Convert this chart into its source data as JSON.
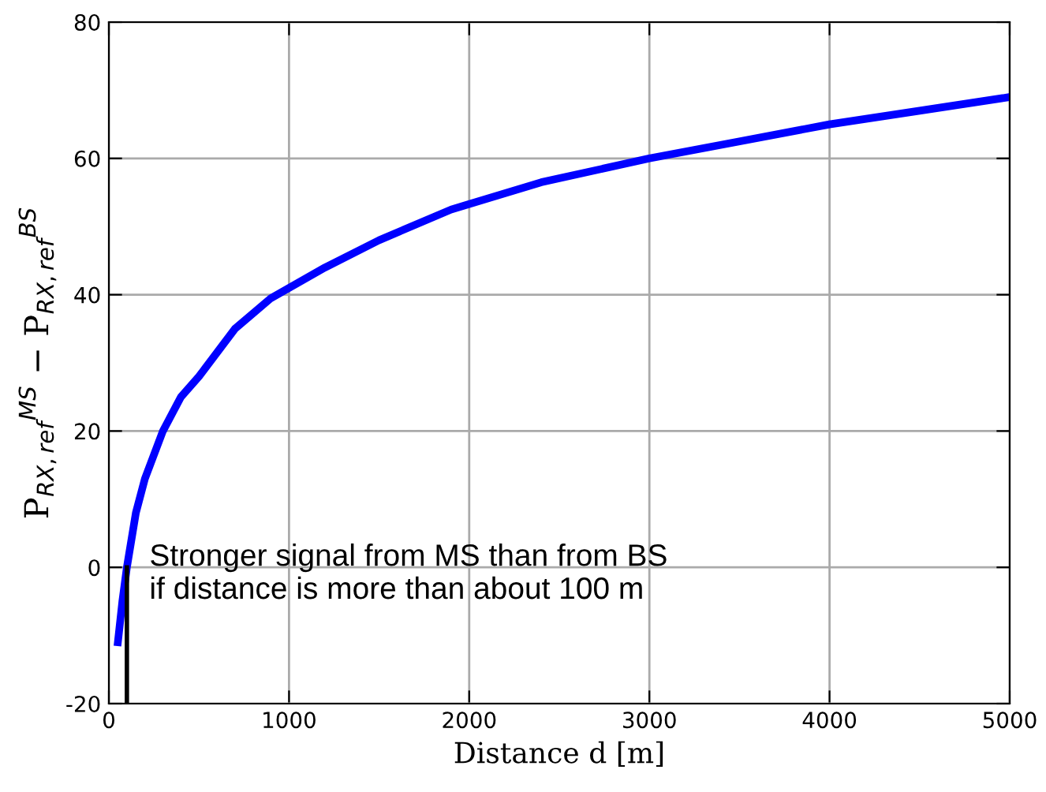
{
  "chart_data": {
    "type": "line",
    "xlabel": "Distance d [m]",
    "ylabel": "P$_{RX,ref}$$^{MS}$ − P$_{RX,ref}$$^{BS}$",
    "xlim": [
      0,
      5000
    ],
    "xticks": [
      0,
      1000,
      2000,
      3000,
      4000,
      5000
    ],
    "ylim": [
      -20,
      80
    ],
    "yticks": [
      -20,
      0,
      20,
      40,
      60,
      80
    ],
    "grid": true,
    "series": [
      {
        "color": "#0000ff",
        "x": [
          50,
          75,
          100,
          150,
          200,
          300,
          400,
          500,
          700,
          900,
          1200,
          1500,
          1900,
          2400,
          3000,
          3500,
          4000,
          4500,
          5000
        ],
        "values": [
          -11,
          -5,
          0,
          8,
          13,
          20,
          25,
          28,
          35,
          39.5,
          44,
          48,
          52.5,
          56.5,
          60,
          62.5,
          65,
          67,
          69
        ]
      },
      {
        "color": "#000000",
        "x": [
          100,
          100
        ],
        "values": [
          -20,
          0
        ]
      }
    ],
    "annotations": [
      "Stronger signal from MS than from BS\nif distance is more than about 100 m"
    ]
  }
}
